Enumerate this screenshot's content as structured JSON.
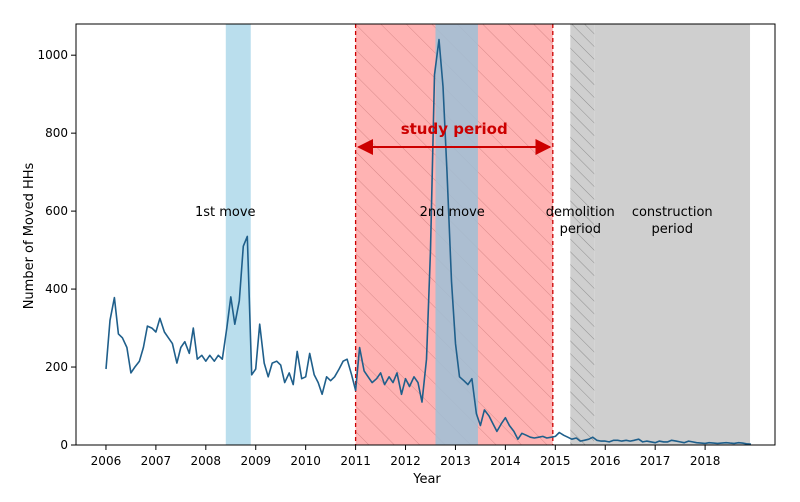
{
  "chart_data": {
    "type": "line",
    "xlabel": "Year",
    "ylabel": "Number of Moved HHs",
    "xlim": [
      2005.4,
      2019.4
    ],
    "ylim": [
      0,
      1080
    ],
    "x_ticks": [
      2006,
      2007,
      2008,
      2009,
      2010,
      2011,
      2012,
      2013,
      2014,
      2015,
      2016,
      2017,
      2018
    ],
    "x_tick_labels": [
      "2006",
      "2007",
      "2008",
      "2009",
      "2010",
      "2011",
      "2012",
      "2013",
      "2014",
      "2015",
      "2016",
      "2017",
      "2018"
    ],
    "y_ticks": [
      0,
      200,
      400,
      600,
      800,
      1000
    ],
    "y_tick_labels": [
      "0",
      "200",
      "400",
      "600",
      "800",
      "1000"
    ],
    "grid": false,
    "line_color": "#1f5f8b",
    "series": [
      {
        "x": [
          2006.0,
          2006.08,
          2006.17,
          2006.25,
          2006.33,
          2006.42,
          2006.5,
          2006.58,
          2006.67,
          2006.75,
          2006.83,
          2006.92,
          2007.0,
          2007.08,
          2007.17,
          2007.25,
          2007.33,
          2007.42,
          2007.5,
          2007.58,
          2007.67,
          2007.75,
          2007.83,
          2007.92,
          2008.0,
          2008.08,
          2008.17,
          2008.25,
          2008.33,
          2008.42,
          2008.5,
          2008.58,
          2008.67,
          2008.75,
          2008.83,
          2008.92,
          2009.0,
          2009.08,
          2009.17,
          2009.25,
          2009.33,
          2009.42,
          2009.5,
          2009.58,
          2009.67,
          2009.75,
          2009.83,
          2009.92,
          2010.0,
          2010.08,
          2010.17,
          2010.25,
          2010.33,
          2010.42,
          2010.5,
          2010.58,
          2010.67,
          2010.75,
          2010.83,
          2010.92,
          2011.0,
          2011.08,
          2011.17,
          2011.25,
          2011.33,
          2011.42,
          2011.5,
          2011.58,
          2011.67,
          2011.75,
          2011.83,
          2011.92,
          2012.0,
          2012.08,
          2012.17,
          2012.25,
          2012.33,
          2012.42,
          2012.5,
          2012.58,
          2012.67,
          2012.75,
          2012.83,
          2012.92,
          2013.0,
          2013.08,
          2013.17,
          2013.25,
          2013.33,
          2013.42,
          2013.5,
          2013.58,
          2013.67,
          2013.75,
          2013.83,
          2013.92,
          2014.0,
          2014.08,
          2014.17,
          2014.25,
          2014.33,
          2014.42,
          2014.5,
          2014.58,
          2014.67,
          2014.75,
          2014.83,
          2014.92,
          2015.0,
          2015.08,
          2015.17,
          2015.25,
          2015.33,
          2015.42,
          2015.5,
          2015.58,
          2015.67,
          2015.75,
          2015.83,
          2015.92,
          2016.0,
          2016.08,
          2016.17,
          2016.25,
          2016.33,
          2016.42,
          2016.5,
          2016.58,
          2016.67,
          2016.75,
          2016.83,
          2016.92,
          2017.0,
          2017.08,
          2017.17,
          2017.25,
          2017.33,
          2017.42,
          2017.5,
          2017.58,
          2017.67,
          2017.75,
          2017.83,
          2017.92,
          2018.0,
          2018.08,
          2018.17,
          2018.25,
          2018.33,
          2018.42,
          2018.5,
          2018.58,
          2018.67,
          2018.75,
          2018.83,
          2018.92
        ],
        "y": [
          195,
          320,
          378,
          285,
          275,
          250,
          185,
          200,
          215,
          250,
          305,
          300,
          290,
          325,
          290,
          275,
          260,
          210,
          250,
          265,
          235,
          300,
          220,
          230,
          215,
          230,
          215,
          230,
          220,
          300,
          380,
          310,
          370,
          510,
          535,
          180,
          195,
          310,
          210,
          175,
          210,
          215,
          205,
          160,
          185,
          155,
          240,
          170,
          175,
          235,
          180,
          160,
          130,
          175,
          165,
          175,
          195,
          215,
          220,
          180,
          140,
          250,
          190,
          175,
          160,
          170,
          185,
          155,
          175,
          160,
          185,
          130,
          170,
          150,
          175,
          160,
          110,
          220,
          500,
          950,
          1040,
          920,
          700,
          420,
          260,
          175,
          165,
          155,
          170,
          80,
          50,
          90,
          75,
          55,
          35,
          55,
          70,
          50,
          35,
          15,
          30,
          25,
          20,
          18,
          20,
          22,
          18,
          20,
          22,
          32,
          25,
          20,
          15,
          18,
          10,
          12,
          15,
          20,
          12,
          10,
          10,
          8,
          12,
          12,
          10,
          12,
          10,
          12,
          15,
          8,
          10,
          8,
          6,
          10,
          8,
          8,
          12,
          10,
          8,
          6,
          10,
          8,
          6,
          5,
          4,
          6,
          5,
          4,
          5,
          6,
          5,
          4,
          6,
          5,
          3,
          2
        ]
      }
    ],
    "shaded_regions": [
      {
        "id": "first-move",
        "x_start": 2008.4,
        "x_end": 2008.9,
        "style": "blue",
        "label": "1st move"
      },
      {
        "id": "study-period",
        "x_start": 2011.0,
        "x_end": 2014.95,
        "style": "red-hatched",
        "label": "study period"
      },
      {
        "id": "second-move",
        "x_start": 2012.6,
        "x_end": 2013.45,
        "style": "blue",
        "label": "2nd move"
      },
      {
        "id": "demolition",
        "x_start": 2015.3,
        "x_end": 2015.78,
        "style": "grey-hatched",
        "label_lines": [
          "demolition",
          "period"
        ]
      },
      {
        "id": "construction",
        "x_start": 2015.78,
        "x_end": 2018.9,
        "style": "grey",
        "label_lines": [
          "construction",
          "period"
        ]
      }
    ],
    "colors": {
      "blue_band": "#aed8ea",
      "red_band": "#ffb3b3",
      "red_accent": "#cc0000",
      "grey_band": "#cfcfcf",
      "hatch_grey": "#9a9a9a",
      "hatch_red": "#d98a8a"
    },
    "annotations": {
      "first_move": "1st move",
      "second_move": "2nd move",
      "study_period": "study period",
      "demolition_line1": "demolition",
      "demolition_line2": "period",
      "construction_line1": "construction",
      "construction_line2": "period"
    }
  }
}
